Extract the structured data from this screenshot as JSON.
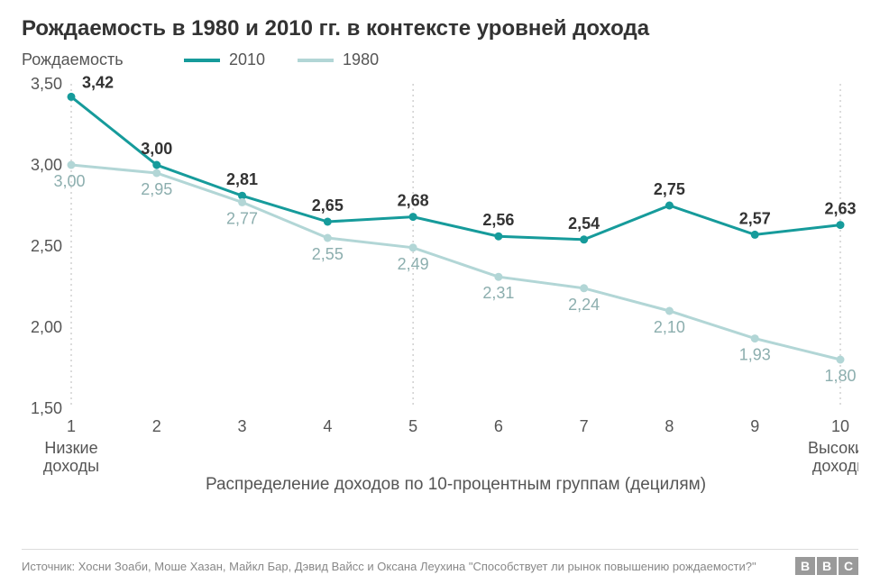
{
  "title": "Рождаемость в 1980 и 2010 гг. в контексте уровней дохода",
  "ylabel": "Рождаемость",
  "xlabel": "Распределение доходов по 10-процентным группам (децилям)",
  "x_sublabels": {
    "low": "Низкие\nдоходы",
    "high": "Высокие\nдоходы"
  },
  "source": "Источник: Хосни Зоаби, Моше Хазан, Майкл Бар, Дэвид Вайсс и Оксана Леухина \"Способствует ли рынок повышению рождаемости?\"",
  "logo_letters": [
    "B",
    "B",
    "C"
  ],
  "chart": {
    "type": "line",
    "categories": [
      1,
      2,
      3,
      4,
      5,
      6,
      7,
      8,
      9,
      10
    ],
    "ylim": [
      1.5,
      3.5
    ],
    "ytick_step": 0.5,
    "yticks": [
      "1,50",
      "2,00",
      "2,50",
      "3,00",
      "3,50"
    ],
    "grid_x_at": [
      1,
      5,
      10
    ],
    "grid_color": "#b8b8b8",
    "axis_line_color": "#cccccc",
    "background": "#ffffff",
    "marker_radius": 4.5,
    "line_width": 3,
    "title_fontsize": 24,
    "label_fontsize": 18,
    "series": [
      {
        "name": "2010",
        "color": "#169b9b",
        "label_color": "#333333",
        "label_bold": true,
        "label_pos": "above",
        "values": [
          3.42,
          3.0,
          2.81,
          2.65,
          2.68,
          2.56,
          2.54,
          2.75,
          2.57,
          2.63
        ],
        "labels": [
          "3,42",
          "3,00",
          "2,81",
          "2,65",
          "2,68",
          "2,56",
          "2,54",
          "2,75",
          "2,57",
          "2,63"
        ]
      },
      {
        "name": "1980",
        "color": "#b2d6d6",
        "label_color": "#8caeae",
        "label_bold": false,
        "label_pos": "below",
        "values": [
          3.0,
          2.95,
          2.77,
          2.55,
          2.49,
          2.31,
          2.24,
          2.1,
          1.93,
          1.8
        ],
        "labels": [
          "3,00",
          "2,95",
          "2,77",
          "2,55",
          "2,49",
          "2,31",
          "2,24",
          "2,10",
          "1,93",
          "1,80"
        ]
      }
    ]
  }
}
